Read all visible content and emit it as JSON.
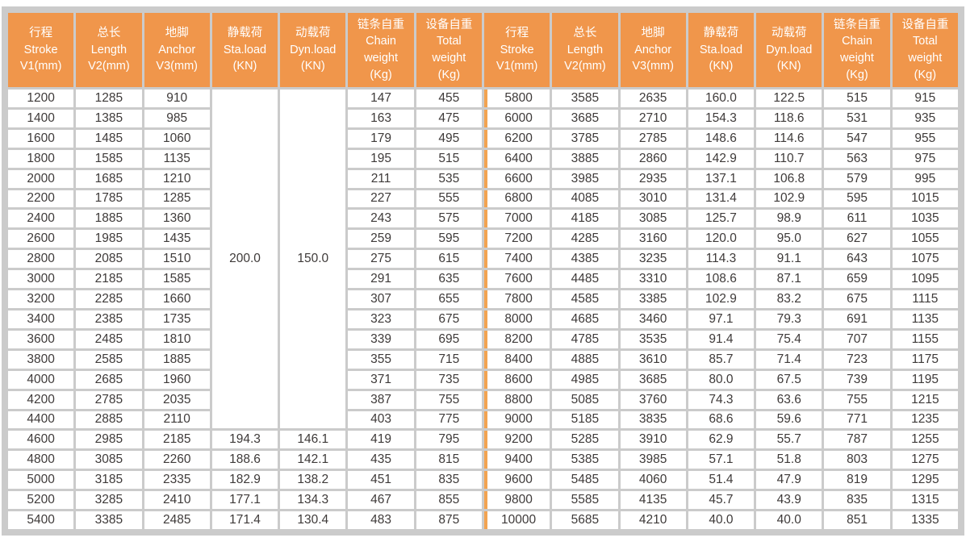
{
  "table": {
    "colors": {
      "header_bg": "#F0964B",
      "divider_line": "#F2A351",
      "grid_line": "#CBCBCB",
      "header_text": "#FFFFFF",
      "cell_text": "#3E3A39",
      "cell_bg": "#FFFFFF"
    },
    "columns": [
      {
        "key": "stroke",
        "lines": [
          "行程",
          "Stroke",
          "V1(mm)"
        ]
      },
      {
        "key": "length",
        "lines": [
          "总长",
          "Length",
          "V2(mm)"
        ]
      },
      {
        "key": "anchor",
        "lines": [
          "地脚",
          "Anchor",
          "V3(mm)"
        ]
      },
      {
        "key": "sta-load",
        "lines": [
          "静载荷",
          "Sta.load",
          "(KN)"
        ]
      },
      {
        "key": "dyn-load",
        "lines": [
          "动载荷",
          "Dyn.load",
          "(KN)"
        ]
      },
      {
        "key": "chain-weight",
        "lines": [
          "链条自重",
          "Chain",
          "weight",
          "(Kg)"
        ]
      },
      {
        "key": "total-weight",
        "lines": [
          "设备自重",
          "Total",
          "weight",
          "(Kg)"
        ]
      }
    ],
    "left": {
      "merged": {
        "sta_load": "200.0",
        "dyn_load": "150.0",
        "rowspan": 17
      },
      "rows": [
        [
          "1200",
          "1285",
          "910",
          "147",
          "455"
        ],
        [
          "1400",
          "1385",
          "985",
          "163",
          "475"
        ],
        [
          "1600",
          "1485",
          "1060",
          "179",
          "495"
        ],
        [
          "1800",
          "1585",
          "1135",
          "195",
          "515"
        ],
        [
          "2000",
          "1685",
          "1210",
          "211",
          "535"
        ],
        [
          "2200",
          "1785",
          "1285",
          "227",
          "555"
        ],
        [
          "2400",
          "1885",
          "1360",
          "243",
          "575"
        ],
        [
          "2600",
          "1985",
          "1435",
          "259",
          "595"
        ],
        [
          "2800",
          "2085",
          "1510",
          "275",
          "615"
        ],
        [
          "3000",
          "2185",
          "1585",
          "291",
          "635"
        ],
        [
          "3200",
          "2285",
          "1660",
          "307",
          "655"
        ],
        [
          "3400",
          "2385",
          "1735",
          "323",
          "675"
        ],
        [
          "3600",
          "2485",
          "1810",
          "339",
          "695"
        ],
        [
          "3800",
          "2585",
          "1885",
          "355",
          "715"
        ],
        [
          "4000",
          "2685",
          "1960",
          "371",
          "735"
        ],
        [
          "4200",
          "2785",
          "2035",
          "387",
          "755"
        ],
        [
          "4400",
          "2885",
          "2110",
          "403",
          "775"
        ],
        [
          "4600",
          "2985",
          "2185",
          "194.3",
          "146.1",
          "419",
          "795"
        ],
        [
          "4800",
          "3085",
          "2260",
          "188.6",
          "142.1",
          "435",
          "815"
        ],
        [
          "5000",
          "3185",
          "2335",
          "182.9",
          "138.2",
          "451",
          "835"
        ],
        [
          "5200",
          "3285",
          "2410",
          "177.1",
          "134.3",
          "467",
          "855"
        ],
        [
          "5400",
          "3385",
          "2485",
          "171.4",
          "130.4",
          "483",
          "875"
        ]
      ]
    },
    "right": {
      "rows": [
        [
          "5800",
          "3585",
          "2635",
          "160.0",
          "122.5",
          "515",
          "915"
        ],
        [
          "6000",
          "3685",
          "2710",
          "154.3",
          "118.6",
          "531",
          "935"
        ],
        [
          "6200",
          "3785",
          "2785",
          "148.6",
          "114.6",
          "547",
          "955"
        ],
        [
          "6400",
          "3885",
          "2860",
          "142.9",
          "110.7",
          "563",
          "975"
        ],
        [
          "6600",
          "3985",
          "2935",
          "137.1",
          "106.8",
          "579",
          "995"
        ],
        [
          "6800",
          "4085",
          "3010",
          "131.4",
          "102.9",
          "595",
          "1015"
        ],
        [
          "7000",
          "4185",
          "3085",
          "125.7",
          "98.9",
          "611",
          "1035"
        ],
        [
          "7200",
          "4285",
          "3160",
          "120.0",
          "95.0",
          "627",
          "1055"
        ],
        [
          "7400",
          "4385",
          "3235",
          "114.3",
          "91.1",
          "643",
          "1075"
        ],
        [
          "7600",
          "4485",
          "3310",
          "108.6",
          "87.1",
          "659",
          "1095"
        ],
        [
          "7800",
          "4585",
          "3385",
          "102.9",
          "83.2",
          "675",
          "1115"
        ],
        [
          "8000",
          "4685",
          "3460",
          "97.1",
          "79.3",
          "691",
          "1135"
        ],
        [
          "8200",
          "4785",
          "3535",
          "91.4",
          "75.4",
          "707",
          "1155"
        ],
        [
          "8400",
          "4885",
          "3610",
          "85.7",
          "71.4",
          "723",
          "1175"
        ],
        [
          "8600",
          "4985",
          "3685",
          "80.0",
          "67.5",
          "739",
          "1195"
        ],
        [
          "8800",
          "5085",
          "3760",
          "74.3",
          "63.6",
          "755",
          "1215"
        ],
        [
          "9000",
          "5185",
          "3835",
          "68.6",
          "59.6",
          "771",
          "1235"
        ],
        [
          "9200",
          "5285",
          "3910",
          "62.9",
          "55.7",
          "787",
          "1255"
        ],
        [
          "9400",
          "5385",
          "3985",
          "57.1",
          "51.8",
          "803",
          "1275"
        ],
        [
          "9600",
          "5485",
          "4060",
          "51.4",
          "47.9",
          "819",
          "1295"
        ],
        [
          "9800",
          "5585",
          "4135",
          "45.7",
          "43.9",
          "835",
          "1315"
        ],
        [
          "10000",
          "5685",
          "4210",
          "40.0",
          "40.0",
          "851",
          "1335"
        ]
      ]
    }
  }
}
